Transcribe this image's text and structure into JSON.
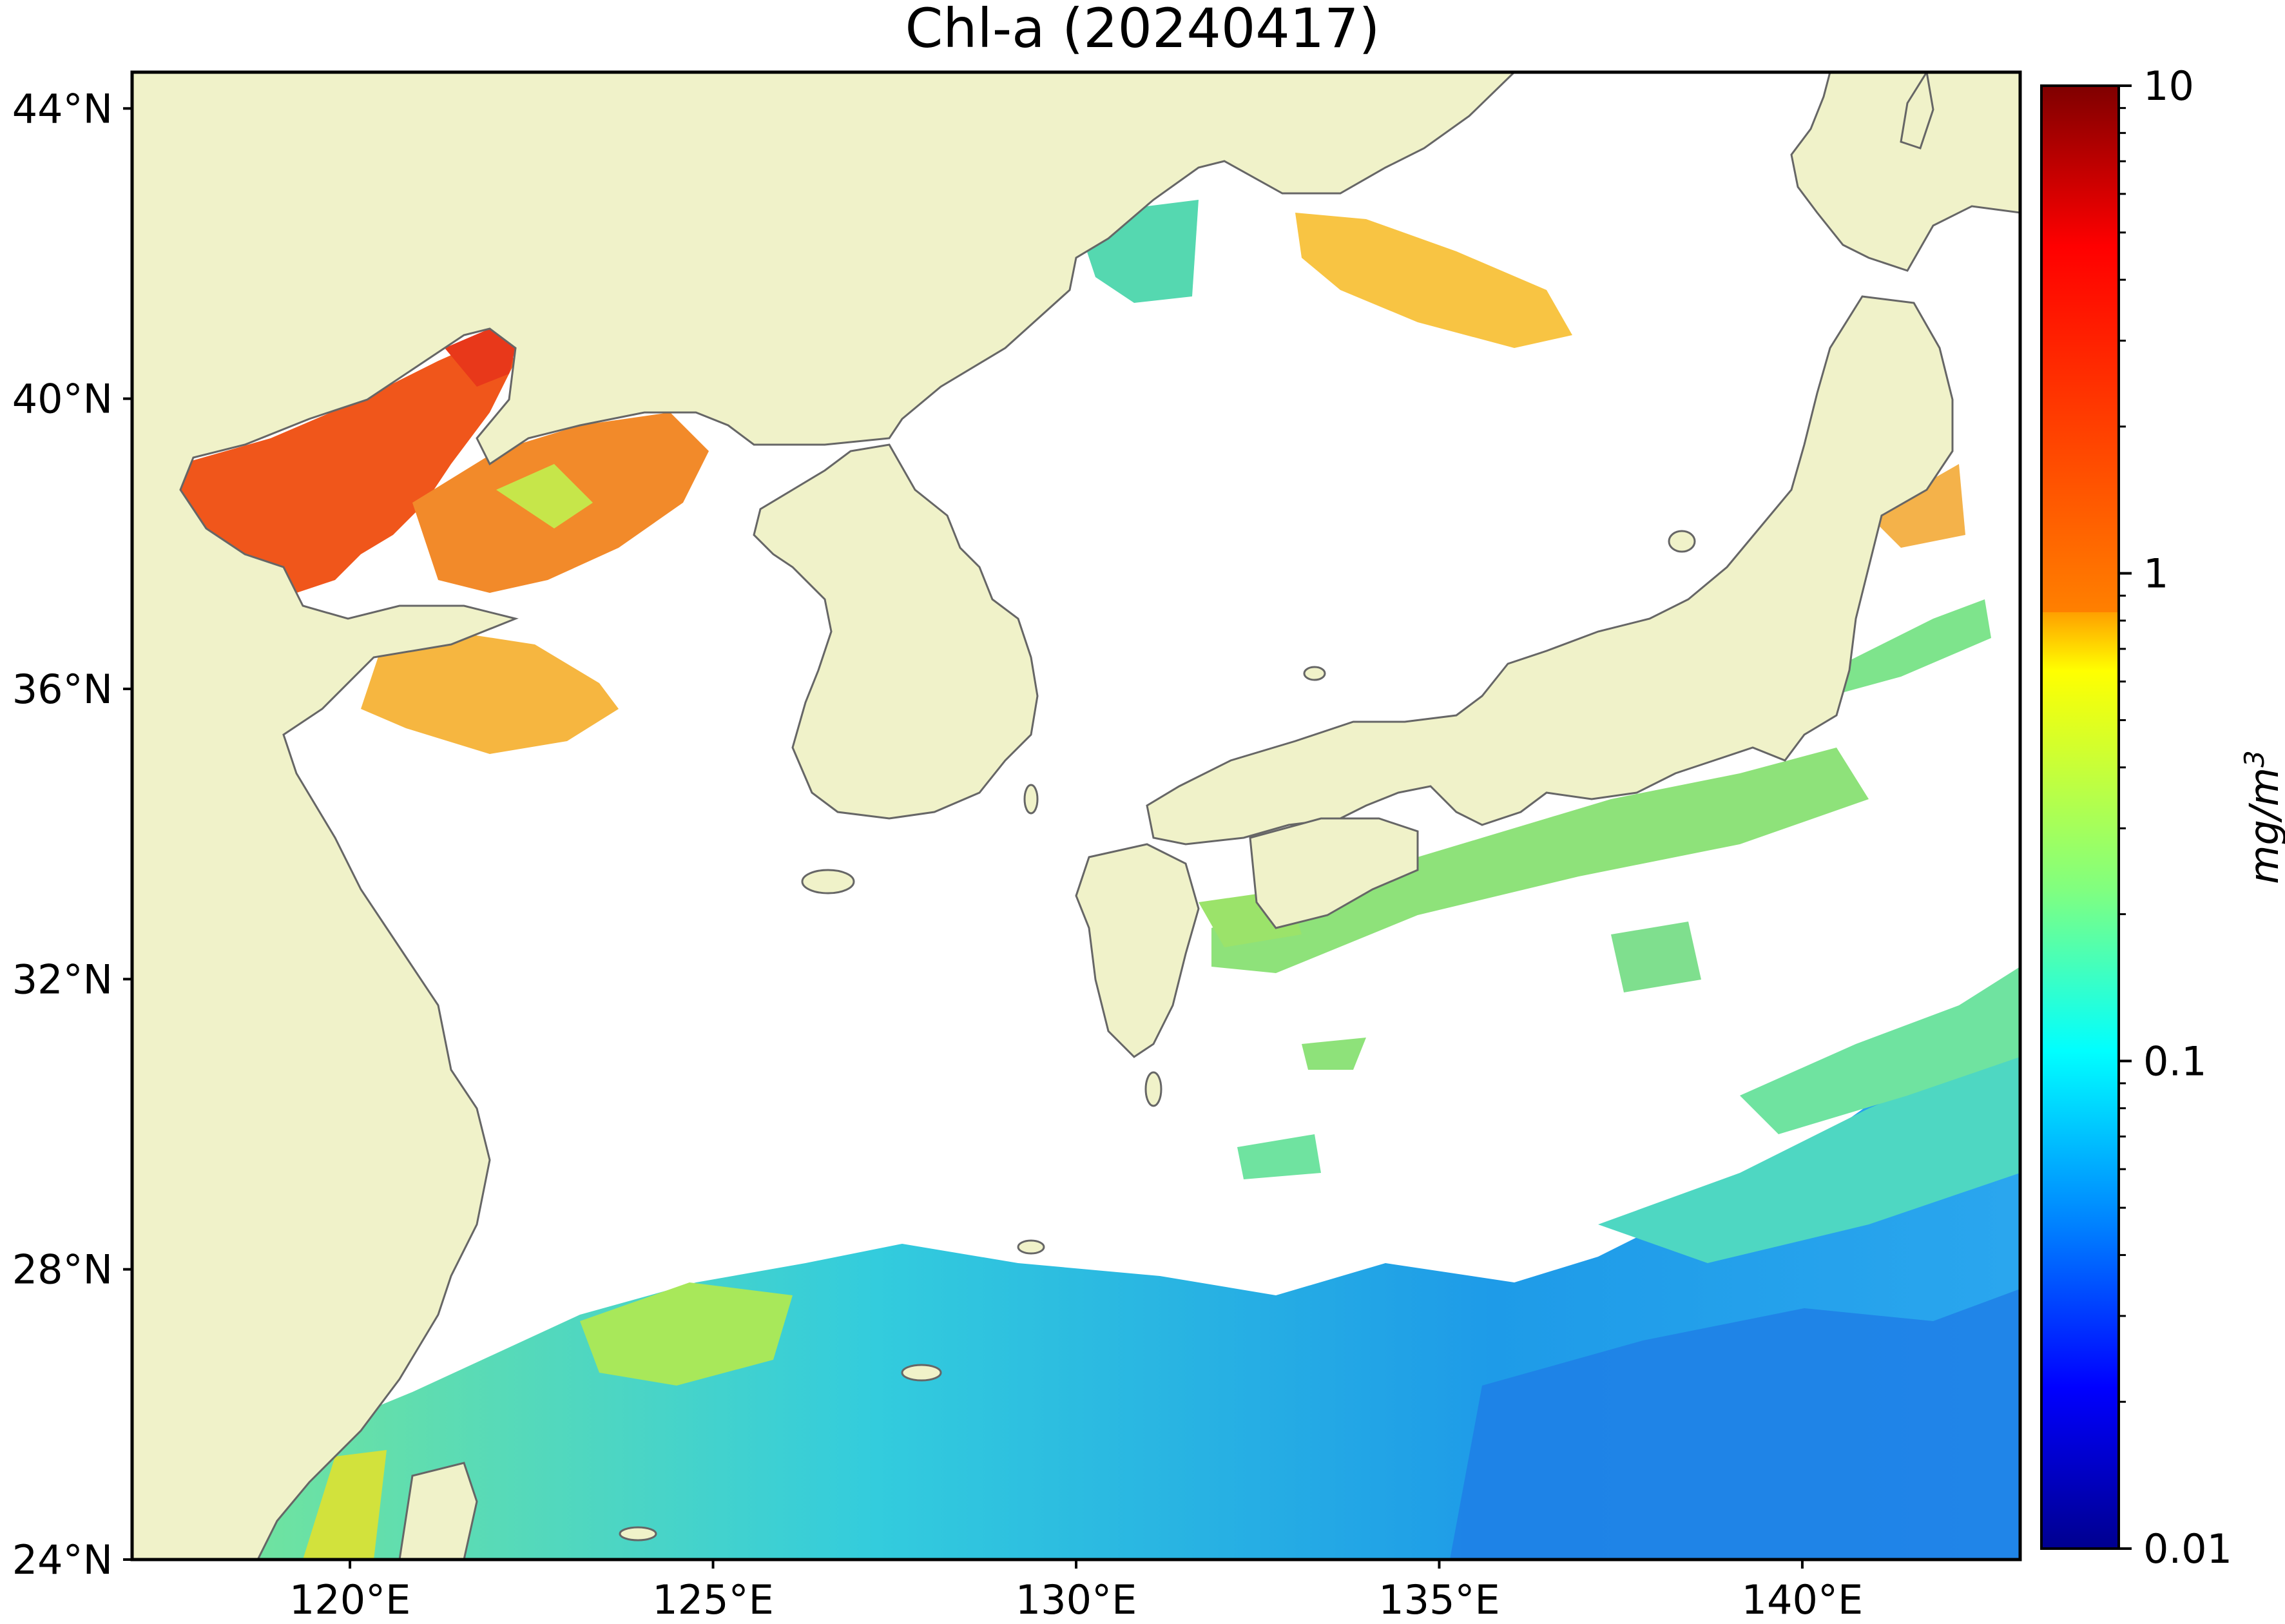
{
  "title": "Chl-a (20240417)",
  "map": {
    "projection": "equirectangular",
    "lon_range": [
      117,
      143
    ],
    "lat_range": [
      24,
      44.5
    ],
    "lat_ticks": [
      {
        "value": 44,
        "label": "44°N"
      },
      {
        "value": 40,
        "label": "40°N"
      },
      {
        "value": 36,
        "label": "36°N"
      },
      {
        "value": 32,
        "label": "32°N"
      },
      {
        "value": 28,
        "label": "28°N"
      },
      {
        "value": 24,
        "label": "24°N"
      }
    ],
    "lon_ticks": [
      {
        "value": 120,
        "label": "120°E"
      },
      {
        "value": 125,
        "label": "125°E"
      },
      {
        "value": 130,
        "label": "130°E"
      },
      {
        "value": 135,
        "label": "135°E"
      },
      {
        "value": 140,
        "label": "140°E"
      }
    ],
    "colors": {
      "land": "#f0f2c9",
      "coastline": "#666666",
      "no_data": "#ffffff",
      "frame": "#000000"
    }
  },
  "colorbar": {
    "scale": "log",
    "min": 0.01,
    "max": 10,
    "colormap": "jet",
    "ticks": [
      {
        "value": 10,
        "label": "10"
      },
      {
        "value": 1,
        "label": "1"
      },
      {
        "value": 0.1,
        "label": "0.1"
      },
      {
        "value": 0.01,
        "label": "0.01"
      }
    ],
    "unit_label": "mg/m",
    "unit_superscript": "3",
    "gradient_stops": [
      "#7f0000",
      "#ff0000",
      "#ff8000",
      "#ffff00",
      "#80ff80",
      "#00ffff",
      "#0080ff",
      "#0000ff",
      "#00008f"
    ]
  }
}
